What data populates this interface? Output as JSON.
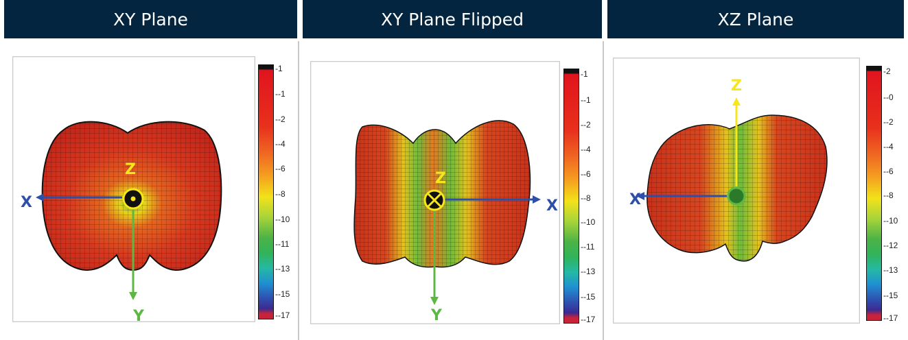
{
  "panels": [
    {
      "title": "XY Plane",
      "scale": [
        "-1",
        "--1",
        "--2",
        "--4",
        "--6",
        "--8",
        "--10",
        "--11",
        "--13",
        "--15",
        "--17"
      ],
      "axes": {
        "x": "X",
        "y": "Y",
        "z": "Z"
      }
    },
    {
      "title": "XY Plane Flipped",
      "scale": [
        "-1",
        "--1",
        "--2",
        "--4",
        "--6",
        "--8",
        "--10",
        "--11",
        "--13",
        "--15",
        "--17"
      ],
      "axes": {
        "x": "X",
        "y": "Y",
        "z": "Z"
      }
    },
    {
      "title": "XZ Plane",
      "scale": [
        "-2",
        "--0",
        "--2",
        "--4",
        "--6",
        "--8",
        "--10",
        "--12",
        "--13",
        "--15",
        "--17"
      ],
      "axes": {
        "x": "X",
        "z": "Z"
      }
    }
  ],
  "colors": {
    "header_bg": "#03253f",
    "x_axis": "#2e4fa8",
    "y_axis": "#5db843",
    "z_axis": "#f6e61b",
    "lobe_red": "#d7391f"
  }
}
